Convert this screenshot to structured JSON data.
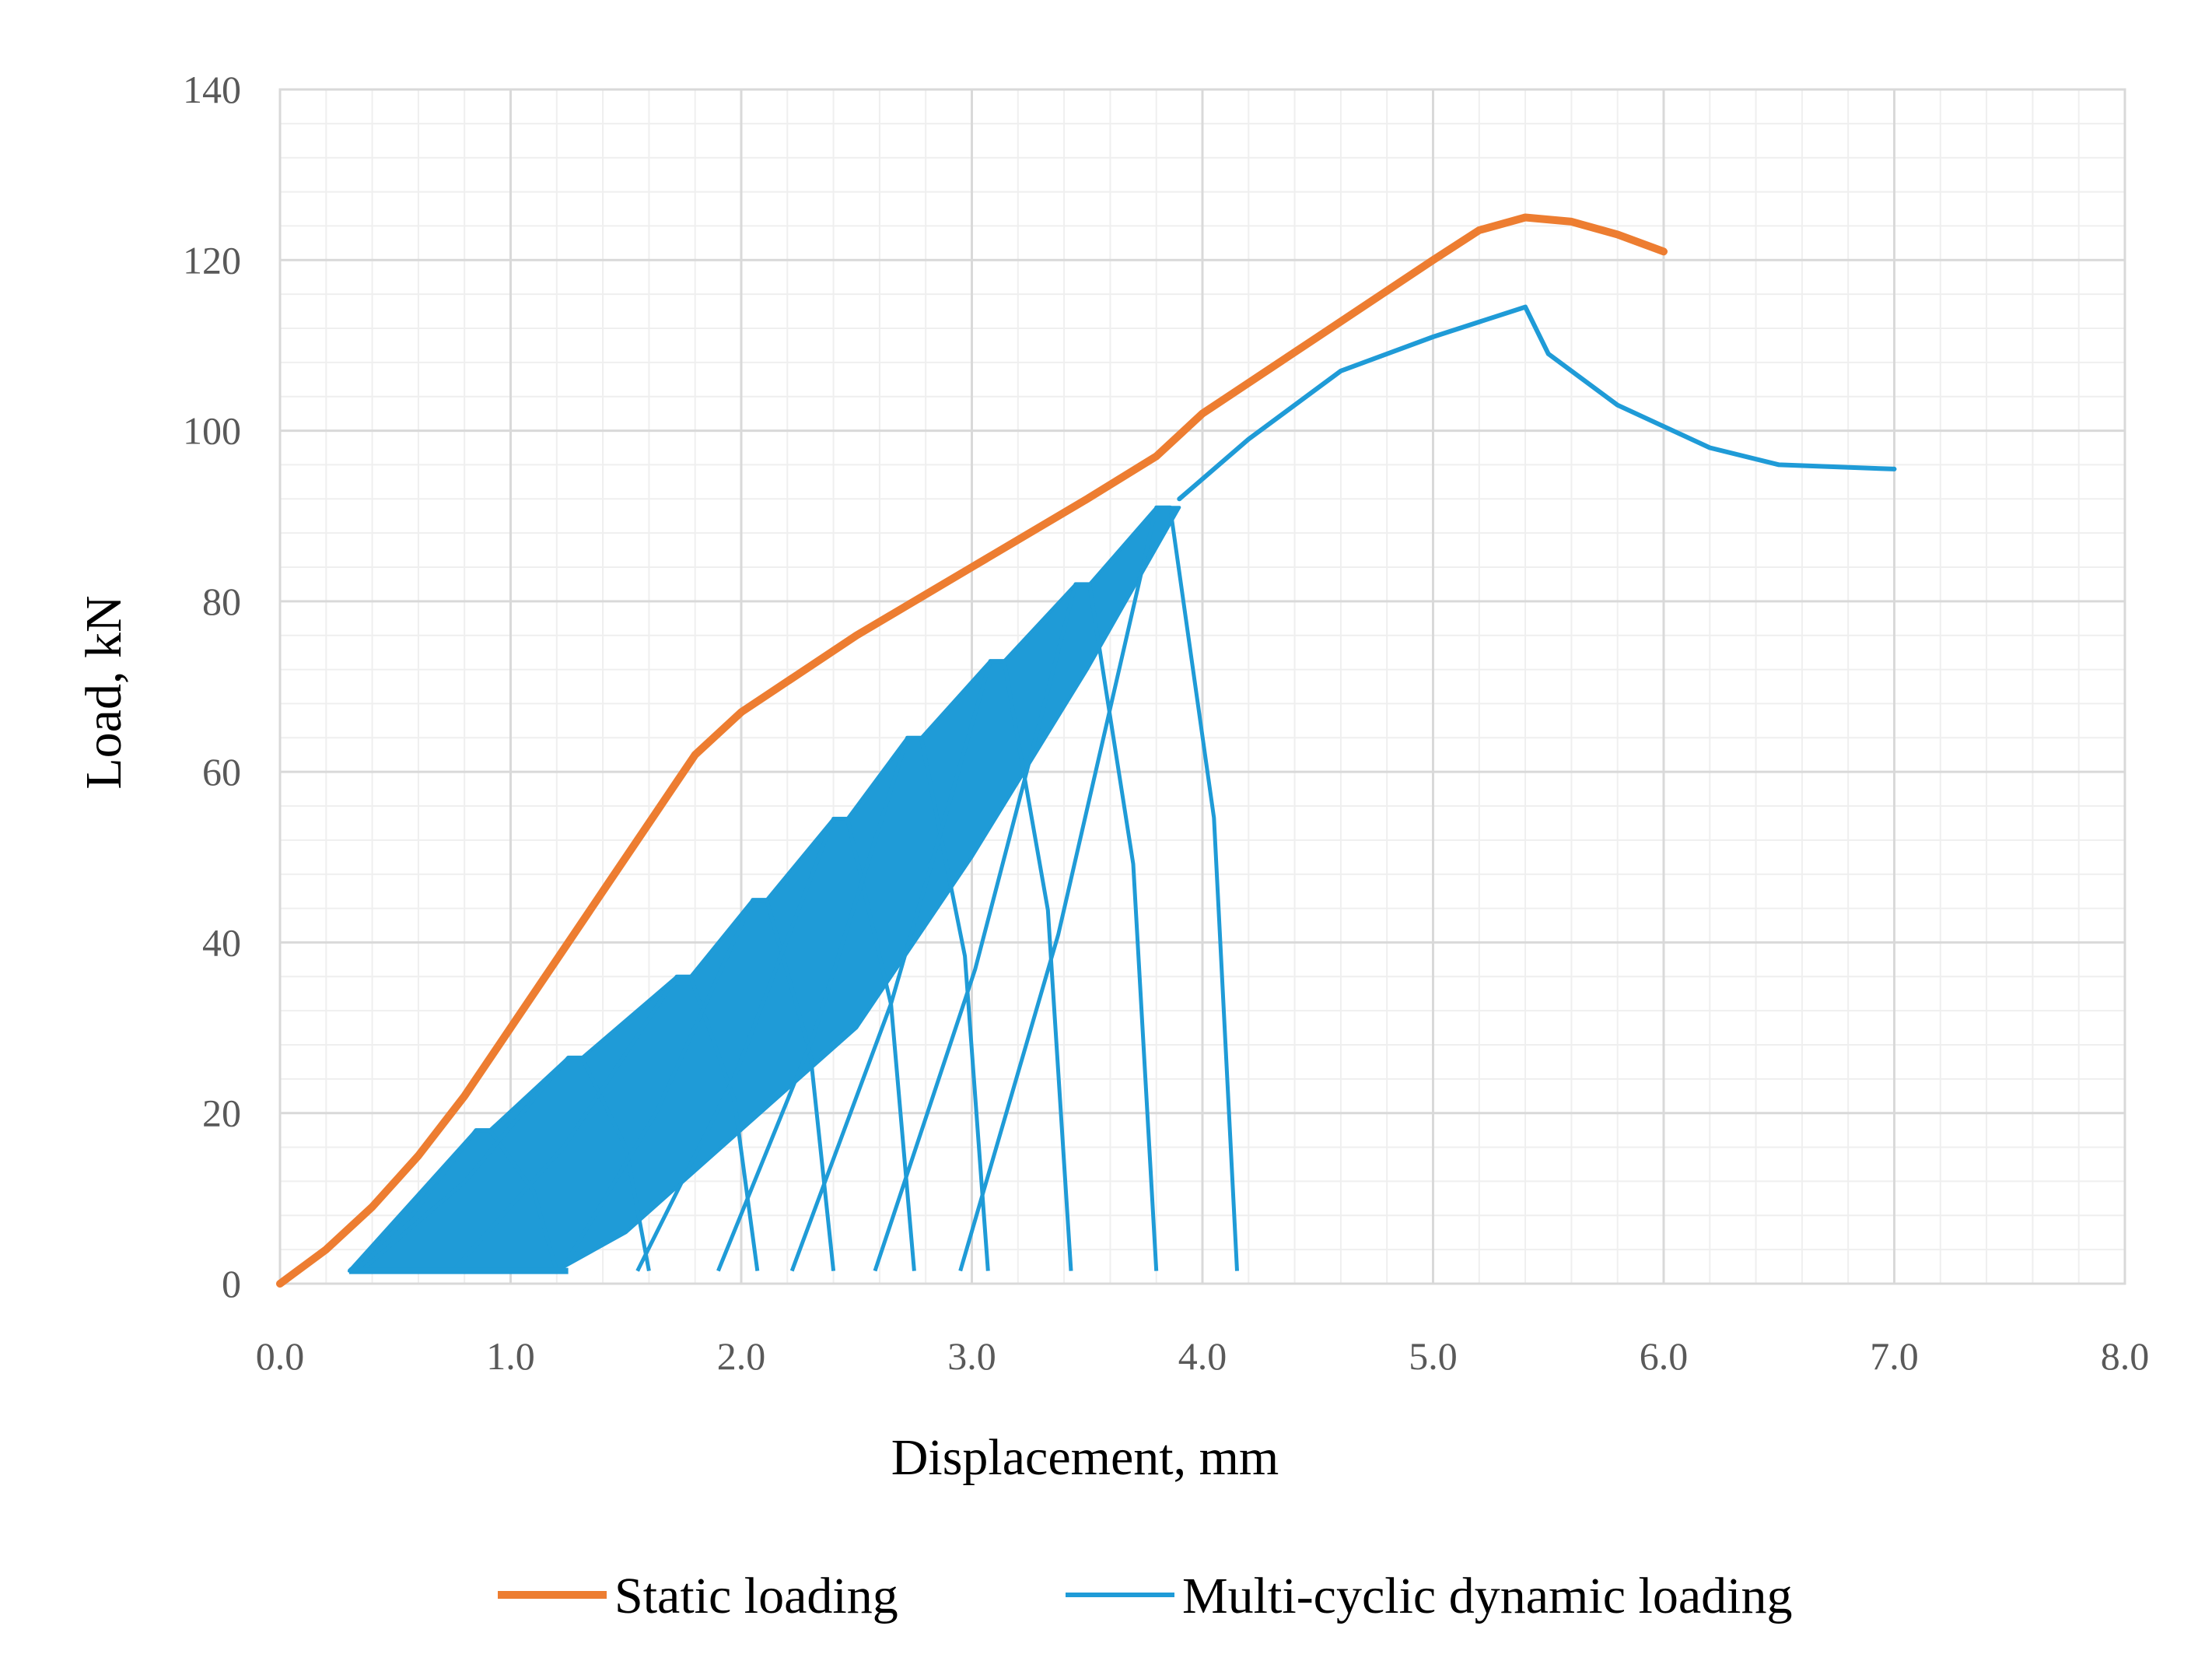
{
  "chart_data": {
    "type": "line",
    "title": "",
    "xlabel": "Displacement, mm",
    "ylabel": "Load, kN",
    "xlim": [
      0,
      8
    ],
    "ylim": [
      0,
      140
    ],
    "x_ticks": [
      "0.0",
      "1.0",
      "2.0",
      "3.0",
      "4.0",
      "5.0",
      "6.0",
      "7.0",
      "8.0"
    ],
    "y_ticks": [
      "0",
      "20",
      "40",
      "60",
      "80",
      "100",
      "120",
      "140"
    ],
    "x_tick_values": [
      0,
      1,
      2,
      3,
      4,
      5,
      6,
      7,
      8
    ],
    "y_tick_values": [
      0,
      20,
      40,
      60,
      80,
      100,
      120,
      140
    ],
    "grid": true,
    "legend_position": "bottom",
    "series": [
      {
        "name": "Static loading",
        "color": "#ED7D31",
        "points": [
          [
            0,
            0
          ],
          [
            0.2,
            4
          ],
          [
            0.4,
            9
          ],
          [
            0.6,
            15
          ],
          [
            0.8,
            22
          ],
          [
            1.0,
            30
          ],
          [
            1.2,
            38
          ],
          [
            1.4,
            46
          ],
          [
            1.6,
            54
          ],
          [
            1.7,
            58
          ],
          [
            1.8,
            62
          ],
          [
            2.0,
            67
          ],
          [
            2.5,
            76
          ],
          [
            3.0,
            84
          ],
          [
            3.5,
            92
          ],
          [
            3.8,
            97
          ],
          [
            4.0,
            102
          ],
          [
            4.5,
            111
          ],
          [
            5.0,
            120
          ],
          [
            5.2,
            123.5
          ],
          [
            5.4,
            125
          ],
          [
            5.6,
            124.5
          ],
          [
            5.8,
            123
          ],
          [
            6.0,
            121
          ]
        ]
      },
      {
        "name": "Multi-cyclic dynamic loading",
        "color": "#1F9BD7",
        "cycle_peaks": [
          [
            0.85,
            18
          ],
          [
            1.25,
            26.5
          ],
          [
            1.72,
            36
          ],
          [
            2.05,
            45
          ],
          [
            2.4,
            54.5
          ],
          [
            2.72,
            64
          ],
          [
            3.08,
            73
          ],
          [
            3.45,
            82
          ],
          [
            3.8,
            91
          ]
        ],
        "cycle_floor": 1.5,
        "envelope_start": [
          0.3,
          1.5
        ],
        "envelope_lower": [
          [
            1.2,
            1.5
          ],
          [
            1.5,
            6
          ],
          [
            2.0,
            18
          ],
          [
            2.5,
            30
          ],
          [
            3.0,
            50
          ],
          [
            3.5,
            72
          ],
          [
            3.9,
            91
          ]
        ],
        "post_cycle_curve": [
          [
            3.9,
            92
          ],
          [
            4.2,
            99
          ],
          [
            4.6,
            107
          ],
          [
            5.0,
            111
          ],
          [
            5.4,
            114.5
          ],
          [
            5.5,
            109
          ],
          [
            5.8,
            103
          ],
          [
            6.2,
            98
          ],
          [
            6.5,
            96
          ],
          [
            7.0,
            95.5
          ]
        ]
      }
    ]
  }
}
